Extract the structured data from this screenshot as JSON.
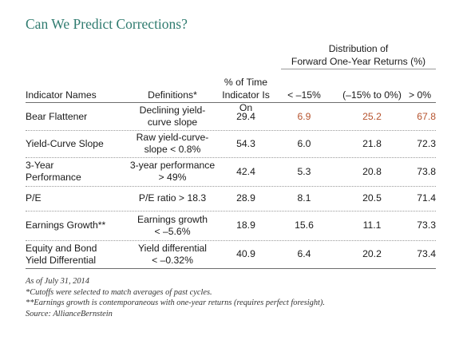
{
  "title": "Can We Predict Corrections?",
  "group_header": [
    "Distribution of",
    "Forward One-Year Returns (%)"
  ],
  "columns": {
    "indicator": "Indicator Names",
    "definition": "Definitions*",
    "pct_time": [
      "% of Time",
      "Indicator Is On"
    ],
    "r1": "< –15%",
    "r2": "(–15% to 0%)",
    "r3": "> 0%"
  },
  "rows": [
    {
      "name": [
        "Bear Flattener"
      ],
      "definition": [
        "Declining yield-",
        "curve slope"
      ],
      "pct": "29.4",
      "r1": "6.9",
      "r2": "25.2",
      "r3": "67.8",
      "highlight": true
    },
    {
      "name": [
        "Yield-Curve Slope"
      ],
      "definition": [
        "Raw yield-curve-",
        "slope < 0.8%"
      ],
      "pct": "54.3",
      "r1": "6.0",
      "r2": "21.8",
      "r3": "72.3",
      "highlight": false
    },
    {
      "name": [
        "3-Year",
        "Performance"
      ],
      "definition": [
        "3-year performance",
        "> 49%"
      ],
      "pct": "42.4",
      "r1": "5.3",
      "r2": "20.8",
      "r3": "73.8",
      "highlight": false
    },
    {
      "name": [
        "P/E"
      ],
      "definition": [
        "P/E ratio > 18.3"
      ],
      "pct": "28.9",
      "r1": "8.1",
      "r2": "20.5",
      "r3": "71.4",
      "highlight": false
    },
    {
      "name": [
        "Earnings Growth**"
      ],
      "definition": [
        "Earnings growth",
        "< –5.6%"
      ],
      "pct": "18.9",
      "r1": "15.6",
      "r2": "11.1",
      "r3": "73.3",
      "highlight": false
    },
    {
      "name": [
        "Equity and Bond",
        "Yield Differential"
      ],
      "definition": [
        "Yield differential",
        "< –0.32%"
      ],
      "pct": "40.9",
      "r1": "6.4",
      "r2": "20.2",
      "r3": "73.4",
      "highlight": false
    }
  ],
  "notes": [
    "As of July 31, 2014",
    "*Cutoffs were selected to match averages of past cycles.",
    "**Earnings growth is contemporaneous with one-year returns (requires perfect foresight).",
    "Source: AllianceBernstein"
  ],
  "colors": {
    "title": "#2f7b6f",
    "highlight": "#b6532e",
    "text": "#1a1a1a"
  }
}
